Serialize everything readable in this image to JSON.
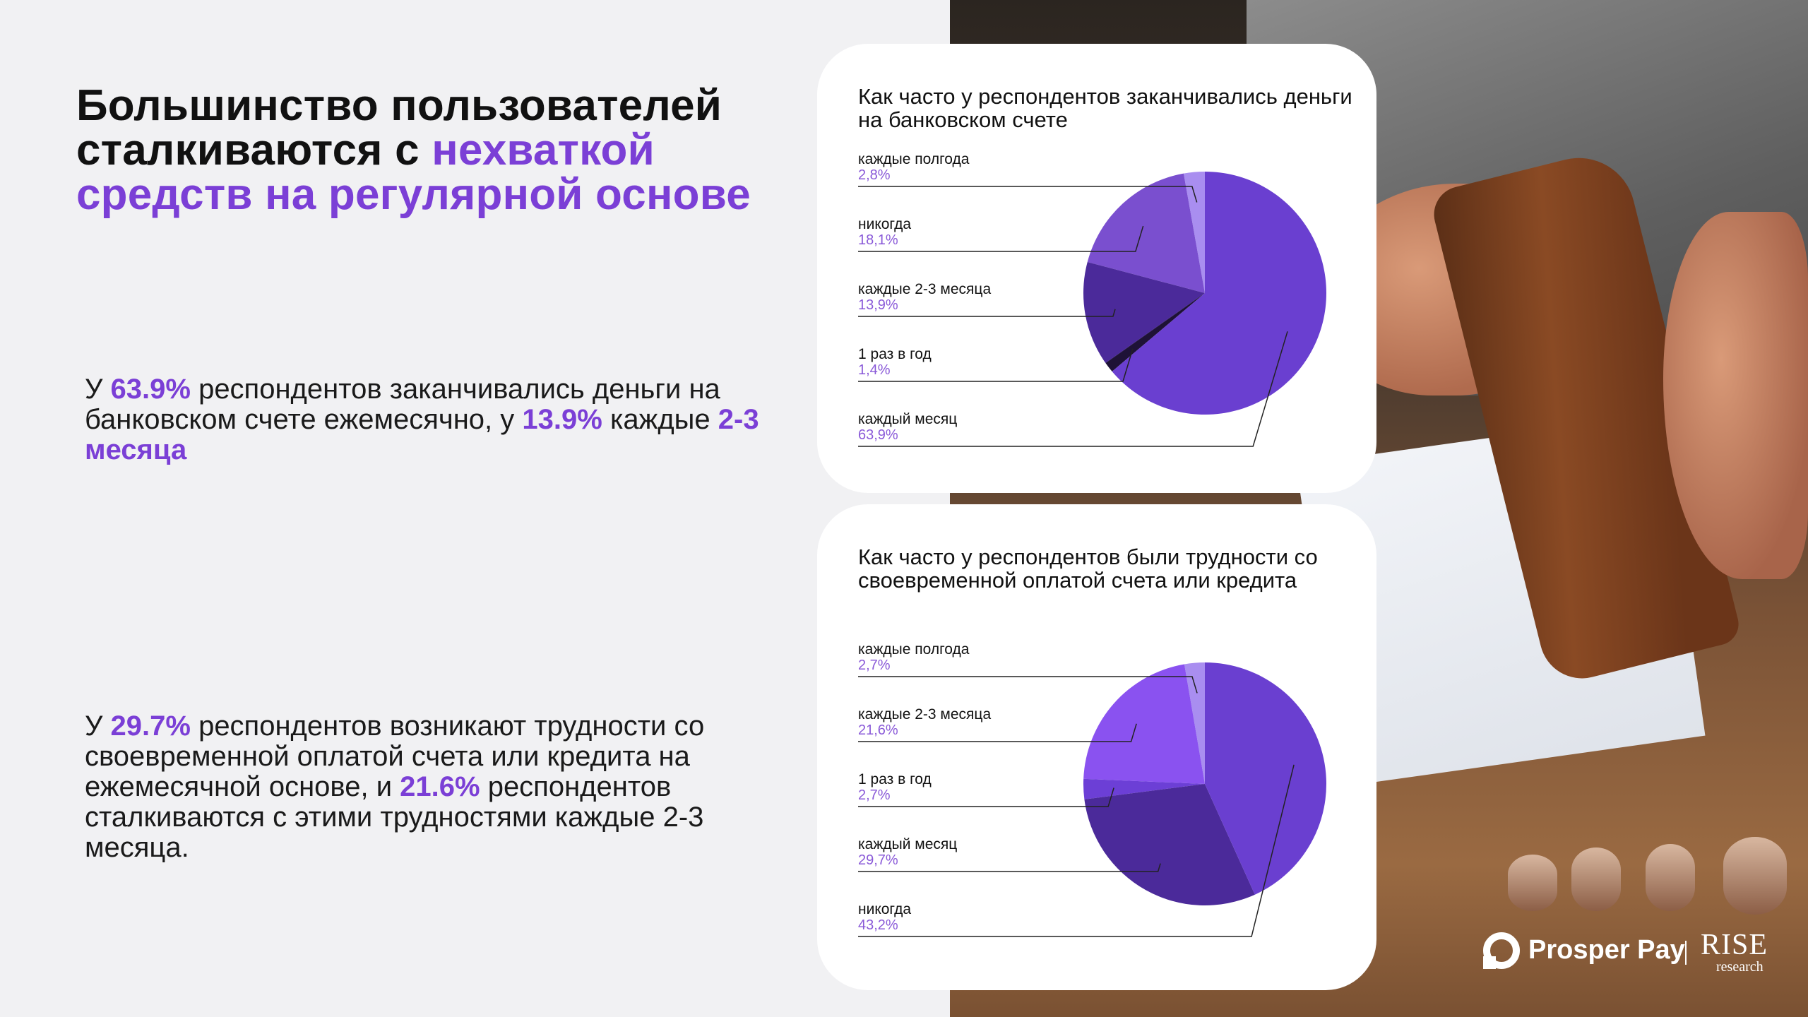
{
  "headline": {
    "part1": "Большинство пользователей сталкиваются с ",
    "accent": "нехваткой средств на регулярной основе"
  },
  "paragraph1": {
    "t1": "У ",
    "h1": "63.9%",
    "t2": " респондентов заканчивались деньги на банковском счете ежемесячно, у ",
    "h2": "13.9%",
    "t3": " каждые ",
    "h3": "2-3 месяца"
  },
  "paragraph2": {
    "t1": "У ",
    "h1": "29.7%",
    "t2": " респондентов возникают трудности со своевременной оплатой счета или кредита на ежемесячной основе, и ",
    "h2": "21.6%",
    "t3": " респондентов сталкиваются с этими трудностями каждые 2-3 месяца."
  },
  "chart_data": [
    {
      "type": "pie",
      "title": "Как часто у респондентов заканчивались деньги на банковском счете",
      "categories": [
        "каждые полгода",
        "никогда",
        "каждые 2-3 месяца",
        "1 раз в год",
        "каждый месяц"
      ],
      "labels": [
        "2,8%",
        "18,1%",
        "13,9%",
        "1,4%",
        "63,9%"
      ],
      "values": [
        2.8,
        18.1,
        13.9,
        1.4,
        63.9
      ],
      "colors": [
        "#a98ef0",
        "#7a4fcf",
        "#4b2a9a",
        "#1e1236",
        "#6a3fd0"
      ],
      "legend": "left"
    },
    {
      "type": "pie",
      "title": "Как часто у респондентов были трудности со своевременной оплатой счета или кредита",
      "categories": [
        "каждые полгода",
        "каждые 2-3 месяца",
        "1 раз в год",
        "каждый месяц",
        "никогда"
      ],
      "labels": [
        "2,7%",
        "21,6%",
        "2,7%",
        "29,7%",
        "43,2%"
      ],
      "values": [
        2.7,
        21.6,
        2.7,
        29.7,
        43.2
      ],
      "colors": [
        "#a98ef0",
        "#8a52f0",
        "#6c3fd6",
        "#4b2a9a",
        "#6a3fd0"
      ],
      "legend": "left"
    }
  ],
  "logo": {
    "brand": "Prosper Pay",
    "rise": "RISE",
    "research": "research"
  }
}
